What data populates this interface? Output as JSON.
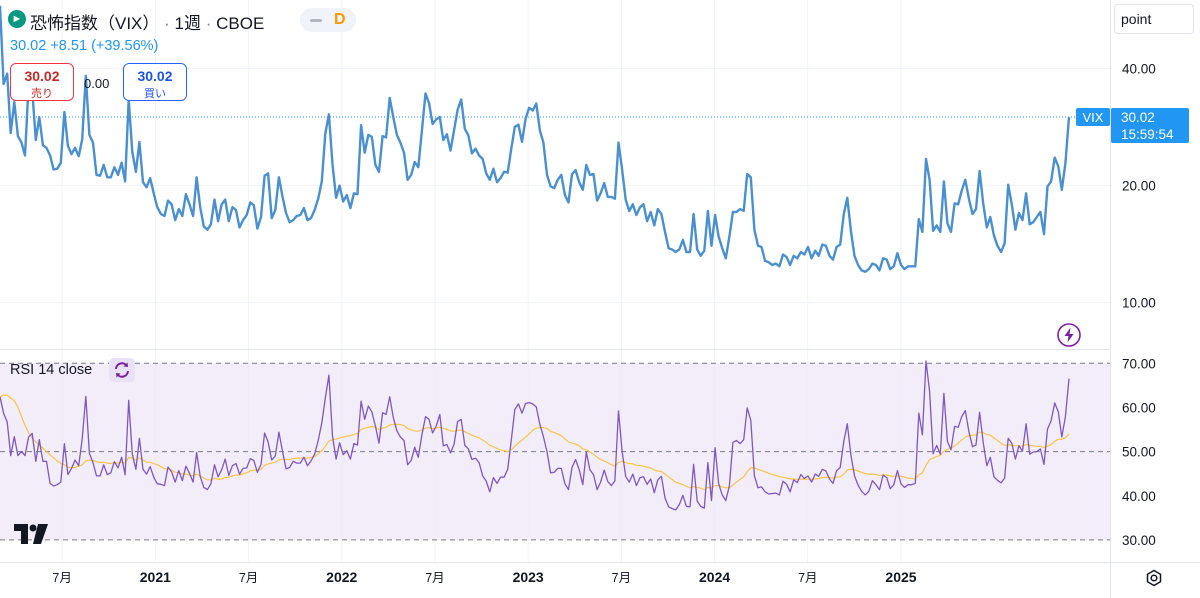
{
  "header": {
    "symbol_name": "恐怖指数（VIX）",
    "interval": "1週",
    "exchange": "CBOE",
    "interval_code": "D",
    "logo_icon": "tradingview-symbol-icon"
  },
  "quote": {
    "last": "30.02",
    "change": "+8.51",
    "change_pct": "(+39.56%)"
  },
  "trade": {
    "sell_price": "30.02",
    "sell_label": "売り",
    "spread": "0.00",
    "buy_price": "30.02",
    "buy_label": "買い"
  },
  "unit_selector": "point",
  "last_price_label": {
    "name": "VIX",
    "value": "30.02",
    "countdown": "15:59:54"
  },
  "indicator": {
    "label": "RSI 14 close",
    "icon": "refresh-icon"
  },
  "colors": {
    "vix_line": "#4a90d0",
    "rsi_line": "#7e57c2",
    "rsi_ma": "#f7c548",
    "rsi_band": "#ede7f6",
    "last_label_bg": "#2196f3"
  },
  "chart_data": [
    {
      "type": "line",
      "series": [
        {
          "name": "VIX",
          "values": [
            58.0,
            36.5,
            38.8,
            27.3,
            32.8,
            26.8,
            25.8,
            23.9,
            36.3,
            35.2,
            26.2,
            30.0,
            25.4,
            25.0,
            23.9,
            22.0,
            22.1,
            22.9,
            30.9,
            25.3,
            24.1,
            25.0,
            23.8,
            26.3,
            38.3,
            27.0,
            25.8,
            21.3,
            21.2,
            22.6,
            21.0,
            21.0,
            22.3,
            21.3,
            22.9,
            20.5,
            33.3,
            24.4,
            21.7,
            25.9,
            20.4,
            19.8,
            20.9,
            19.1,
            17.6,
            16.9,
            16.7,
            18.3,
            17.9,
            16.3,
            17.4,
            16.7,
            19.0,
            17.9,
            16.7,
            21.0,
            17.6,
            15.7,
            15.4,
            15.9,
            18.4,
            16.2,
            17.9,
            18.4,
            16.2,
            17.6,
            17.3,
            15.6,
            16.3,
            16.8,
            18.1,
            17.8,
            15.5,
            16.6,
            21.2,
            21.5,
            16.5,
            17.3,
            21.0,
            18.8,
            17.0,
            16.1,
            16.3,
            16.7,
            16.8,
            17.5,
            16.3,
            16.5,
            17.3,
            18.5,
            20.5,
            27.2,
            30.5,
            22.7,
            18.6,
            20.0,
            18.2,
            18.9,
            17.5,
            19.1,
            19.0,
            28.6,
            24.3,
            27.0,
            26.7,
            22.6,
            21.7,
            26.8,
            26.6,
            33.6,
            30.0,
            27.0,
            25.8,
            24.3,
            20.7,
            21.3,
            23.0,
            22.3,
            27.7,
            34.5,
            32.6,
            28.8,
            29.6,
            30.0,
            26.2,
            27.1,
            24.6,
            27.8,
            31.3,
            33.3,
            28.0,
            26.9,
            24.2,
            24.9,
            23.9,
            23.4,
            21.5,
            20.7,
            22.1,
            20.4,
            20.9,
            21.7,
            21.6,
            24.9,
            28.3,
            28.7,
            25.9,
            29.7,
            31.7,
            31.2,
            32.5,
            27.7,
            25.8,
            21.3,
            19.9,
            19.7,
            20.7,
            21.3,
            18.9,
            18.1,
            21.4,
            21.9,
            20.4,
            19.5,
            22.6,
            21.3,
            21.4,
            18.3,
            19.1,
            20.3,
            18.7,
            18.7,
            18.5,
            25.8,
            22.0,
            18.4,
            17.2,
            17.9,
            16.8,
            17.6,
            17.9,
            16.2,
            17.1,
            15.8,
            17.4,
            16.9,
            15.2,
            13.8,
            13.7,
            13.5,
            13.7,
            14.5,
            13.5,
            13.5,
            16.9,
            13.7,
            13.2,
            13.6,
            17.2,
            14.0,
            16.8,
            14.8,
            13.8,
            13.0,
            14.8,
            17.1,
            17.1,
            17.4,
            17.2,
            21.4,
            21.0,
            15.4,
            14.0,
            13.9,
            12.8,
            12.7,
            12.5,
            12.6,
            12.4,
            13.3,
            13.1,
            12.5,
            13.2,
            13.0,
            13.5,
            13.3,
            13.9,
            13.0,
            13.6,
            13.2,
            14.1,
            14.0,
            13.2,
            12.9,
            13.9,
            14.1,
            16.9,
            18.6,
            15.3,
            13.2,
            12.5,
            12.1,
            12.0,
            12.2,
            12.6,
            12.5,
            12.1,
            13.0,
            12.9,
            12.2,
            12.4,
            13.4,
            12.5,
            12.2,
            12.4,
            12.4,
            12.4,
            16.4,
            15.2,
            23.4,
            20.7,
            15.3,
            15.8,
            15.2,
            20.5,
            16.0,
            15.2,
            18.0,
            17.9,
            19.4,
            20.7,
            18.5,
            16.9,
            17.4,
            21.8,
            18.0,
            15.6,
            16.6,
            14.9,
            14.0,
            13.5,
            14.2,
            20.1,
            17.9,
            15.4,
            17.0,
            16.3,
            19.1,
            15.9,
            16.1,
            16.6,
            17.1,
            15.0,
            19.9,
            20.5,
            23.6,
            22.4,
            19.5,
            22.8,
            30.0
          ]
        }
      ],
      "x_start": "2020-03",
      "x_tick_labels": [
        "7月",
        "2021",
        "7月",
        "2022",
        "7月",
        "2023",
        "7月",
        "2024",
        "7月",
        "2025"
      ],
      "x_ticks": [
        "2020-07",
        "2021-01",
        "2021-07",
        "2022-01",
        "2022-07",
        "2023-01",
        "2023-07",
        "2024-01",
        "2024-07",
        "2025-01"
      ],
      "y_tick_labels": [
        "10.00",
        "20.00",
        "40.00"
      ],
      "y_ticks": [
        10,
        20,
        40
      ],
      "y_scale": "log",
      "ylim": [
        7.6,
        60
      ],
      "reference_line": 30.02,
      "grid": true
    },
    {
      "type": "line",
      "series": [
        {
          "name": "RSI 14 close",
          "values": [
            62.4,
            58.7,
            56.7,
            49.1,
            53.4,
            49.1,
            50.0,
            49.1,
            53.3,
            54.1,
            47.8,
            52.7,
            47.8,
            47.8,
            42.8,
            42.2,
            42.5,
            43.1,
            51.8,
            44.8,
            46.2,
            48.1,
            46.8,
            52.9,
            62.5,
            49.6,
            47.5,
            44.5,
            44.5,
            47.0,
            44.8,
            45.2,
            47.7,
            46.3,
            48.7,
            44.8,
            61.6,
            49.4,
            46.0,
            53.0,
            46.0,
            44.9,
            46.6,
            44.2,
            42.7,
            42.6,
            42.3,
            46.5,
            45.4,
            43.1,
            45.7,
            43.4,
            46.7,
            45.1,
            43.1,
            49.8,
            44.4,
            41.9,
            41.4,
            42.7,
            47.0,
            44.3,
            45.9,
            48.3,
            44.6,
            46.8,
            47.3,
            44.9,
            46.2,
            46.3,
            48.4,
            48.0,
            45.3,
            47.1,
            54.2,
            52.2,
            48.1,
            49.0,
            54.4,
            50.2,
            46.1,
            46.4,
            47.8,
            47.4,
            47.4,
            48.7,
            46.8,
            47.9,
            49.4,
            52.5,
            56.5,
            62.1,
            67.3,
            53.5,
            48.3,
            52.0,
            49.3,
            50.2,
            48.3,
            51.8,
            51.5,
            61.4,
            57.3,
            60.3,
            59.0,
            55.8,
            51.9,
            58.8,
            58.4,
            62.4,
            57.7,
            54.7,
            53.3,
            52.5,
            47.0,
            48.0,
            51.0,
            48.7,
            53.8,
            57.9,
            57.3,
            54.2,
            55.8,
            58.4,
            51.3,
            51.6,
            49.7,
            51.7,
            56.8,
            57.3,
            51.4,
            50.6,
            48.2,
            48.5,
            47.5,
            44.5,
            43.3,
            40.9,
            44.1,
            42.8,
            44.2,
            44.2,
            46.0,
            52.6,
            59.5,
            60.8,
            58.7,
            60.9,
            61.1,
            60.8,
            60.1,
            56.1,
            53.4,
            50.0,
            45.2,
            45.3,
            46.2,
            46.2,
            42.7,
            41.4,
            46.4,
            48.2,
            45.9,
            42.5,
            49.9,
            45.9,
            44.8,
            41.4,
            43.1,
            45.8,
            43.2,
            42.3,
            43.4,
            59.2,
            50.1,
            44.4,
            43.1,
            44.9,
            42.3,
            44.1,
            44.3,
            42.6,
            43.8,
            40.7,
            43.6,
            44.4,
            39.5,
            37.5,
            37.1,
            36.8,
            38.0,
            40.1,
            37.6,
            37.5,
            47.1,
            38.8,
            37.6,
            37.2,
            47.5,
            38.9,
            50.9,
            42.8,
            40.2,
            38.9,
            42.3,
            52.1,
            52.5,
            51.8,
            52.7,
            59.9,
            57.1,
            44.5,
            41.8,
            42.0,
            40.9,
            40.4,
            40.5,
            40.6,
            40.2,
            43.3,
            42.6,
            40.9,
            43.6,
            43.0,
            44.8,
            43.9,
            44.5,
            43.1,
            44.9,
            44.4,
            46.0,
            45.6,
            43.8,
            42.8,
            45.7,
            46.4,
            52.3,
            56.3,
            49.2,
            44.5,
            42.4,
            41.0,
            40.2,
            41.0,
            43.4,
            42.5,
            41.4,
            44.7,
            44.1,
            41.6,
            42.5,
            45.7,
            42.7,
            41.9,
            42.5,
            42.5,
            42.8,
            58.7,
            53.8,
            70.5,
            63.6,
            49.5,
            51.4,
            49.4,
            63.2,
            52.3,
            50.4,
            55.7,
            55.5,
            57.9,
            59.3,
            54.5,
            51.1,
            51.5,
            58.9,
            52.1,
            46.8,
            48.7,
            44.3,
            43.5,
            42.9,
            44.0,
            53.0,
            51.9,
            48.3,
            51.3,
            50.1,
            56.3,
            49.4,
            49.9,
            50.0,
            50.6,
            47.1,
            55.1,
            57.0,
            61.0,
            59.0,
            53.3,
            57.9,
            66.5
          ]
        },
        {
          "name": "RSI MA",
          "values": [
            62.4,
            62.8,
            62.8,
            62.1,
            61.5,
            60.1,
            58.0,
            55.9,
            54.3,
            53.0,
            52.2,
            51.5,
            50.8,
            50.0,
            49.3,
            48.6,
            47.9,
            47.3,
            47.0,
            46.5,
            46.3,
            46.4,
            46.7,
            47.0,
            47.9,
            48.1,
            48.0,
            47.7,
            47.5,
            47.6,
            47.4,
            47.3,
            47.5,
            47.4,
            47.6,
            47.4,
            48.7,
            48.5,
            48.1,
            48.6,
            48.1,
            47.6,
            47.6,
            47.3,
            47.0,
            46.6,
            46.1,
            46.1,
            45.8,
            45.3,
            45.2,
            44.9,
            44.9,
            44.7,
            44.5,
            44.9,
            44.5,
            44.0,
            43.6,
            43.6,
            44.0,
            43.7,
            43.8,
            44.1,
            44.2,
            44.5,
            44.7,
            44.7,
            45.0,
            45.2,
            45.6,
            45.8,
            45.8,
            46.0,
            46.9,
            47.2,
            47.4,
            47.6,
            48.1,
            48.3,
            48.2,
            48.2,
            48.4,
            48.5,
            48.5,
            48.6,
            48.5,
            48.7,
            48.9,
            49.5,
            50.2,
            51.2,
            52.4,
            52.7,
            52.8,
            53.1,
            53.3,
            53.5,
            53.6,
            53.9,
            54.1,
            55.0,
            55.3,
            55.5,
            55.7,
            55.5,
            55.0,
            55.3,
            55.5,
            56.0,
            56.2,
            56.2,
            56.1,
            55.9,
            55.2,
            54.9,
            54.7,
            54.6,
            54.9,
            55.3,
            55.4,
            55.2,
            55.3,
            55.5,
            55.3,
            55.0,
            54.7,
            54.6,
            54.8,
            54.9,
            54.5,
            54.1,
            53.7,
            53.4,
            53.1,
            52.6,
            52.1,
            51.4,
            51.1,
            50.7,
            50.4,
            50.2,
            50.0,
            50.4,
            51.2,
            52.0,
            52.6,
            53.3,
            54.0,
            54.8,
            55.3,
            55.4,
            55.4,
            55.2,
            54.6,
            54.3,
            54.0,
            53.6,
            52.9,
            52.2,
            51.9,
            51.7,
            51.3,
            50.6,
            50.4,
            49.9,
            49.4,
            48.7,
            48.2,
            47.9,
            47.5,
            47.0,
            46.7,
            47.5,
            47.8,
            47.5,
            47.3,
            47.2,
            46.9,
            46.8,
            46.7,
            46.5,
            46.3,
            45.8,
            45.6,
            45.5,
            44.9,
            44.3,
            43.7,
            43.1,
            42.8,
            42.5,
            42.1,
            41.8,
            42.1,
            41.9,
            41.7,
            41.4,
            41.9,
            41.7,
            42.3,
            42.3,
            42.0,
            41.8,
            41.8,
            42.4,
            43.1,
            43.7,
            44.3,
            45.5,
            46.3,
            46.3,
            46.0,
            45.7,
            45.4,
            45.1,
            44.8,
            44.6,
            44.3,
            44.2,
            44.0,
            43.8,
            43.8,
            43.7,
            43.8,
            43.7,
            43.8,
            43.7,
            43.8,
            43.9,
            44.1,
            44.2,
            44.1,
            44.0,
            44.2,
            44.3,
            44.9,
            45.8,
            46.0,
            45.9,
            45.6,
            45.3,
            45.0,
            44.9,
            44.9,
            44.8,
            44.6,
            44.7,
            44.7,
            44.5,
            44.4,
            44.5,
            44.4,
            44.2,
            44.0,
            43.9,
            43.8,
            44.7,
            45.2,
            46.9,
            48.2,
            48.5,
            48.9,
            49.1,
            50.1,
            50.5,
            50.7,
            51.3,
            51.9,
            52.6,
            53.3,
            53.6,
            53.7,
            53.8,
            54.4,
            54.3,
            53.9,
            53.7,
            53.1,
            52.5,
            51.9,
            51.4,
            51.5,
            51.5,
            51.3,
            51.3,
            51.2,
            51.6,
            51.4,
            51.3,
            51.2,
            51.2,
            50.9,
            51.2,
            51.6,
            52.3,
            52.8,
            52.8,
            53.1,
            54.0
          ]
        }
      ],
      "y_tick_labels": [
        "30.00",
        "40.00",
        "50.00",
        "60.00",
        "70.00"
      ],
      "y_ticks": [
        30,
        40,
        50,
        60,
        70
      ],
      "ylim": [
        25,
        73
      ],
      "bands": {
        "upper": 70,
        "middle": 50,
        "lower": 30
      }
    }
  ]
}
